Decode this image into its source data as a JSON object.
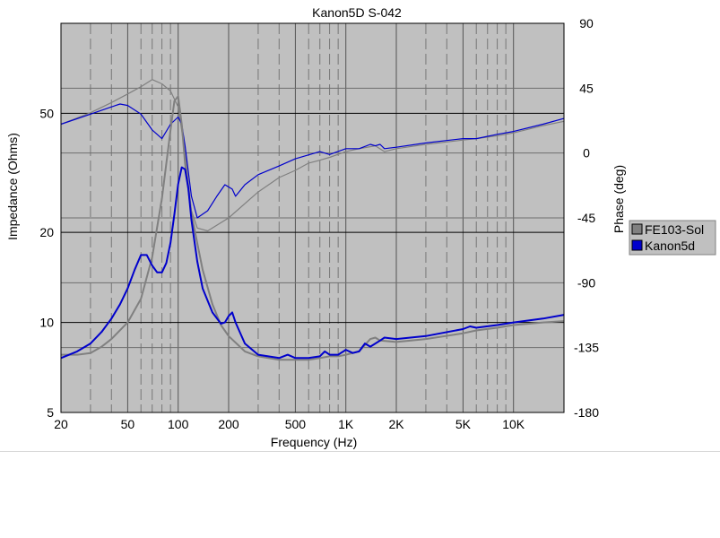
{
  "chart_data": {
    "type": "line",
    "title": "Kanon5D S-042",
    "xlabel": "Frequency (Hz)",
    "ylabel_left": "Impedance (Ohms)",
    "ylabel_right": "Phase (deg)",
    "x_scale": "log",
    "xlim": [
      20,
      20000
    ],
    "ylim_left": [
      5,
      100
    ],
    "y_left_scale": "log",
    "ylim_right": [
      -180,
      90
    ],
    "grid": true,
    "legend_position": "right",
    "x_ticks": [
      {
        "value": 20,
        "label": "20"
      },
      {
        "value": 50,
        "label": "50"
      },
      {
        "value": 100,
        "label": "100"
      },
      {
        "value": 200,
        "label": "200"
      },
      {
        "value": 500,
        "label": "500"
      },
      {
        "value": 1000,
        "label": "1K"
      },
      {
        "value": 2000,
        "label": "2K"
      },
      {
        "value": 5000,
        "label": "5K"
      },
      {
        "value": 10000,
        "label": "10K"
      }
    ],
    "y_left_ticks": [
      {
        "value": 5,
        "label": "5"
      },
      {
        "value": 10,
        "label": "10"
      },
      {
        "value": 20,
        "label": "20"
      },
      {
        "value": 50,
        "label": "50"
      }
    ],
    "y_right_ticks": [
      {
        "value": 90,
        "label": "90"
      },
      {
        "value": 45,
        "label": "45"
      },
      {
        "value": 0,
        "label": "0"
      },
      {
        "value": -45,
        "label": "-45"
      },
      {
        "value": -90,
        "label": "-90"
      },
      {
        "value": -135,
        "label": "-135"
      },
      {
        "value": -180,
        "label": "-180"
      }
    ],
    "series": [
      {
        "name": "FE103-Sol",
        "color": "#808080",
        "impedance": [
          [
            20,
            7.8
          ],
          [
            25,
            7.8
          ],
          [
            30,
            7.9
          ],
          [
            35,
            8.3
          ],
          [
            40,
            8.8
          ],
          [
            50,
            10.0
          ],
          [
            60,
            12.0
          ],
          [
            70,
            16.5
          ],
          [
            80,
            26.0
          ],
          [
            90,
            44.0
          ],
          [
            95,
            55.0
          ],
          [
            100,
            57.0
          ],
          [
            105,
            46.0
          ],
          [
            110,
            34.0
          ],
          [
            120,
            23.0
          ],
          [
            140,
            15.0
          ],
          [
            160,
            11.5
          ],
          [
            180,
            9.8
          ],
          [
            200,
            9.0
          ],
          [
            250,
            8.0
          ],
          [
            300,
            7.7
          ],
          [
            400,
            7.5
          ],
          [
            500,
            7.5
          ],
          [
            600,
            7.5
          ],
          [
            700,
            7.6
          ],
          [
            800,
            7.7
          ],
          [
            900,
            7.7
          ],
          [
            1000,
            7.8
          ],
          [
            1200,
            8.0
          ],
          [
            1400,
            8.8
          ],
          [
            1500,
            8.9
          ],
          [
            1600,
            8.7
          ],
          [
            2000,
            8.6
          ],
          [
            3000,
            8.8
          ],
          [
            5000,
            9.2
          ],
          [
            6000,
            9.4
          ],
          [
            8000,
            9.6
          ],
          [
            10000,
            9.8
          ],
          [
            15000,
            10.0
          ],
          [
            20000,
            10.1
          ]
        ],
        "phase": [
          [
            20,
            20
          ],
          [
            30,
            28
          ],
          [
            40,
            35
          ],
          [
            50,
            41
          ],
          [
            60,
            46
          ],
          [
            70,
            51
          ],
          [
            80,
            48
          ],
          [
            90,
            43
          ],
          [
            100,
            32
          ],
          [
            110,
            0
          ],
          [
            120,
            -40
          ],
          [
            130,
            -52
          ],
          [
            150,
            -54
          ],
          [
            200,
            -45
          ],
          [
            300,
            -27
          ],
          [
            400,
            -17
          ],
          [
            500,
            -12
          ],
          [
            600,
            -7
          ],
          [
            700,
            -5
          ],
          [
            800,
            -3
          ],
          [
            1000,
            1
          ],
          [
            1200,
            3
          ],
          [
            1500,
            5
          ],
          [
            1700,
            1
          ],
          [
            2000,
            3
          ],
          [
            3000,
            6
          ],
          [
            5000,
            9
          ],
          [
            6000,
            10
          ],
          [
            8000,
            12
          ],
          [
            10000,
            14
          ],
          [
            15000,
            19
          ],
          [
            20000,
            22
          ]
        ]
      },
      {
        "name": "Kanon5d",
        "color": "#0000cc",
        "impedance": [
          [
            20,
            7.6
          ],
          [
            25,
            8.0
          ],
          [
            30,
            8.5
          ],
          [
            35,
            9.3
          ],
          [
            40,
            10.3
          ],
          [
            45,
            11.5
          ],
          [
            50,
            13.0
          ],
          [
            55,
            15.0
          ],
          [
            60,
            16.8
          ],
          [
            65,
            16.8
          ],
          [
            70,
            15.5
          ],
          [
            75,
            14.7
          ],
          [
            80,
            14.7
          ],
          [
            85,
            15.8
          ],
          [
            90,
            18.5
          ],
          [
            95,
            23.0
          ],
          [
            100,
            29.0
          ],
          [
            105,
            33.0
          ],
          [
            110,
            32.5
          ],
          [
            115,
            28.0
          ],
          [
            120,
            22.0
          ],
          [
            130,
            16.0
          ],
          [
            140,
            13.0
          ],
          [
            160,
            10.8
          ],
          [
            180,
            9.9
          ],
          [
            190,
            10.0
          ],
          [
            200,
            10.5
          ],
          [
            210,
            10.8
          ],
          [
            220,
            10.0
          ],
          [
            250,
            8.5
          ],
          [
            300,
            7.8
          ],
          [
            400,
            7.6
          ],
          [
            450,
            7.8
          ],
          [
            500,
            7.6
          ],
          [
            600,
            7.6
          ],
          [
            700,
            7.7
          ],
          [
            750,
            8.0
          ],
          [
            800,
            7.8
          ],
          [
            900,
            7.8
          ],
          [
            1000,
            8.1
          ],
          [
            1100,
            7.9
          ],
          [
            1200,
            8.0
          ],
          [
            1300,
            8.5
          ],
          [
            1400,
            8.3
          ],
          [
            1600,
            8.7
          ],
          [
            1700,
            8.9
          ],
          [
            2000,
            8.8
          ],
          [
            3000,
            9.0
          ],
          [
            5000,
            9.5
          ],
          [
            5500,
            9.7
          ],
          [
            6000,
            9.6
          ],
          [
            8000,
            9.8
          ],
          [
            10000,
            10.0
          ],
          [
            15000,
            10.3
          ],
          [
            20000,
            10.6
          ]
        ],
        "phase": [
          [
            20,
            20
          ],
          [
            30,
            27
          ],
          [
            40,
            32
          ],
          [
            45,
            34
          ],
          [
            50,
            33
          ],
          [
            60,
            27
          ],
          [
            70,
            16
          ],
          [
            80,
            10
          ],
          [
            90,
            20
          ],
          [
            100,
            25
          ],
          [
            105,
            20
          ],
          [
            110,
            5
          ],
          [
            120,
            -30
          ],
          [
            130,
            -45
          ],
          [
            150,
            -40
          ],
          [
            170,
            -30
          ],
          [
            190,
            -22
          ],
          [
            210,
            -25
          ],
          [
            220,
            -30
          ],
          [
            250,
            -22
          ],
          [
            300,
            -15
          ],
          [
            400,
            -9
          ],
          [
            500,
            -4
          ],
          [
            700,
            1
          ],
          [
            800,
            -1
          ],
          [
            1000,
            3
          ],
          [
            1200,
            3
          ],
          [
            1400,
            6
          ],
          [
            1500,
            5
          ],
          [
            1600,
            6
          ],
          [
            1700,
            3
          ],
          [
            2000,
            4
          ],
          [
            3000,
            7
          ],
          [
            5000,
            10
          ],
          [
            6000,
            10
          ],
          [
            8000,
            13
          ],
          [
            10000,
            15
          ],
          [
            15000,
            20
          ],
          [
            20000,
            24
          ]
        ]
      }
    ]
  }
}
